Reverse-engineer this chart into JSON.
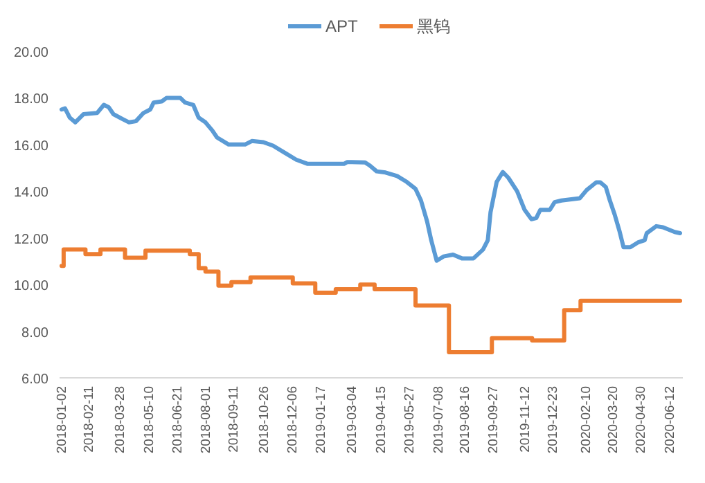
{
  "chart_data": {
    "type": "line",
    "legend": "top",
    "grid": false,
    "line_style": "solid",
    "marker": "none",
    "ylim": [
      6,
      20
    ],
    "yticks": [
      {
        "value": 6,
        "label": "6.00"
      },
      {
        "value": 8,
        "label": "8.00"
      },
      {
        "value": 10,
        "label": "10.00"
      },
      {
        "value": 12,
        "label": "12.00"
      },
      {
        "value": 14,
        "label": "14.00"
      },
      {
        "value": 16,
        "label": "16.00"
      },
      {
        "value": 18,
        "label": "18.00"
      },
      {
        "value": 20,
        "label": "20.00"
      }
    ],
    "xlim": [
      "2018-01-01",
      "2020-07-03"
    ],
    "xticks": [
      {
        "value": "2018-01-02",
        "label": "2018-01-02"
      },
      {
        "value": "2018-02-11",
        "label": "2018-02-11"
      },
      {
        "value": "2018-03-28",
        "label": "2018-03-28"
      },
      {
        "value": "2018-05-10",
        "label": "2018-05-10"
      },
      {
        "value": "2018-06-21",
        "label": "2018-06-21"
      },
      {
        "value": "2018-08-01",
        "label": "2018-08-01"
      },
      {
        "value": "2018-09-11",
        "label": "2018-09-11"
      },
      {
        "value": "2018-10-26",
        "label": "2018-10-26"
      },
      {
        "value": "2018-12-06",
        "label": "2018-12-06"
      },
      {
        "value": "2019-01-17",
        "label": "2019-01-17"
      },
      {
        "value": "2019-03-04",
        "label": "2019-03-04"
      },
      {
        "value": "2019-04-15",
        "label": "2019-04-15"
      },
      {
        "value": "2019-05-27",
        "label": "2019-05-27"
      },
      {
        "value": "2019-07-08",
        "label": "2019-07-08"
      },
      {
        "value": "2019-08-16",
        "label": "2019-08-16"
      },
      {
        "value": "2019-09-27",
        "label": "2019-09-27"
      },
      {
        "value": "2019-11-12",
        "label": "2019-11-12"
      },
      {
        "value": "2019-12-23",
        "label": "2019-12-23"
      },
      {
        "value": "2020-02-10",
        "label": "2020-02-10"
      },
      {
        "value": "2020-03-20",
        "label": "2020-03-20"
      },
      {
        "value": "2020-04-30",
        "label": "2020-04-30"
      },
      {
        "value": "2020-06-12",
        "label": "2020-06-12"
      }
    ],
    "series": [
      {
        "name": "APT",
        "color": "#5b9bd5",
        "x": [
          "2018-01-04",
          "2018-01-09",
          "2018-01-16",
          "2018-01-24",
          "2018-02-05",
          "2018-02-25",
          "2018-03-07",
          "2018-03-14",
          "2018-03-21",
          "2018-04-03",
          "2018-04-13",
          "2018-04-23",
          "2018-05-04",
          "2018-05-14",
          "2018-05-19",
          "2018-05-31",
          "2018-06-07",
          "2018-06-27",
          "2018-07-04",
          "2018-07-16",
          "2018-07-24",
          "2018-08-03",
          "2018-08-13",
          "2018-08-20",
          "2018-09-06",
          "2018-09-30",
          "2018-10-10",
          "2018-10-27",
          "2018-11-10",
          "2018-11-27",
          "2018-12-14",
          "2018-12-31",
          "2019-02-22",
          "2019-02-27",
          "2019-03-25",
          "2019-04-01",
          "2019-04-11",
          "2019-04-24",
          "2019-05-11",
          "2019-05-25",
          "2019-06-07",
          "2019-06-15",
          "2019-06-24",
          "2019-06-30",
          "2019-07-08",
          "2019-07-18",
          "2019-08-01",
          "2019-08-14",
          "2019-08-31",
          "2019-09-14",
          "2019-09-21",
          "2019-09-25",
          "2019-10-04",
          "2019-10-13",
          "2019-10-21",
          "2019-11-03",
          "2019-11-14",
          "2019-11-24",
          "2019-12-01",
          "2019-12-07",
          "2019-12-21",
          "2019-12-28",
          "2020-01-07",
          "2020-02-03",
          "2020-02-13",
          "2020-02-27",
          "2020-03-04",
          "2020-03-12",
          "2020-03-18",
          "2020-03-25",
          "2020-04-01",
          "2020-04-07",
          "2020-04-17",
          "2020-04-28",
          "2020-05-08",
          "2020-05-11",
          "2020-05-25",
          "2020-06-04",
          "2020-06-21",
          "2020-06-29"
        ],
        "values": [
          17.5,
          17.55,
          17.15,
          16.95,
          17.3,
          17.35,
          17.7,
          17.6,
          17.3,
          17.1,
          16.95,
          17.0,
          17.35,
          17.5,
          17.8,
          17.85,
          18.0,
          18.0,
          17.8,
          17.7,
          17.15,
          16.95,
          16.6,
          16.3,
          16.0,
          16.0,
          16.15,
          16.1,
          15.95,
          15.65,
          15.35,
          15.17,
          15.17,
          15.25,
          15.23,
          15.1,
          14.85,
          14.8,
          14.65,
          14.4,
          14.1,
          13.6,
          12.7,
          11.9,
          11.02,
          11.2,
          11.28,
          11.12,
          11.12,
          11.5,
          11.9,
          13.1,
          14.4,
          14.82,
          14.58,
          14.0,
          13.2,
          12.8,
          12.85,
          13.2,
          13.2,
          13.53,
          13.6,
          13.7,
          14.05,
          14.38,
          14.38,
          14.18,
          13.6,
          13.0,
          12.3,
          11.6,
          11.6,
          11.8,
          11.9,
          12.2,
          12.5,
          12.45,
          12.25,
          12.2
        ]
      },
      {
        "name": "黑钨",
        "color": "#ed7d31",
        "type": "step",
        "x": [
          "2018-01-04",
          "2018-01-07",
          "2018-02-08",
          "2018-03-02",
          "2018-04-07",
          "2018-05-07",
          "2018-07-11",
          "2018-07-24",
          "2018-08-03",
          "2018-08-22",
          "2018-09-10",
          "2018-10-08",
          "2018-12-09",
          "2019-01-11",
          "2019-02-10",
          "2019-03-18",
          "2019-04-08",
          "2019-06-07",
          "2019-07-26",
          "2019-09-27",
          "2019-11-25",
          "2020-01-11",
          "2020-02-04",
          "2020-06-29"
        ],
        "values": [
          10.8,
          11.5,
          11.3,
          11.5,
          11.15,
          11.45,
          11.3,
          10.7,
          10.55,
          9.95,
          10.1,
          10.3,
          10.05,
          9.65,
          9.8,
          10.0,
          9.8,
          9.1,
          7.1,
          7.7,
          7.6,
          8.9,
          9.3,
          9.3
        ]
      }
    ]
  }
}
